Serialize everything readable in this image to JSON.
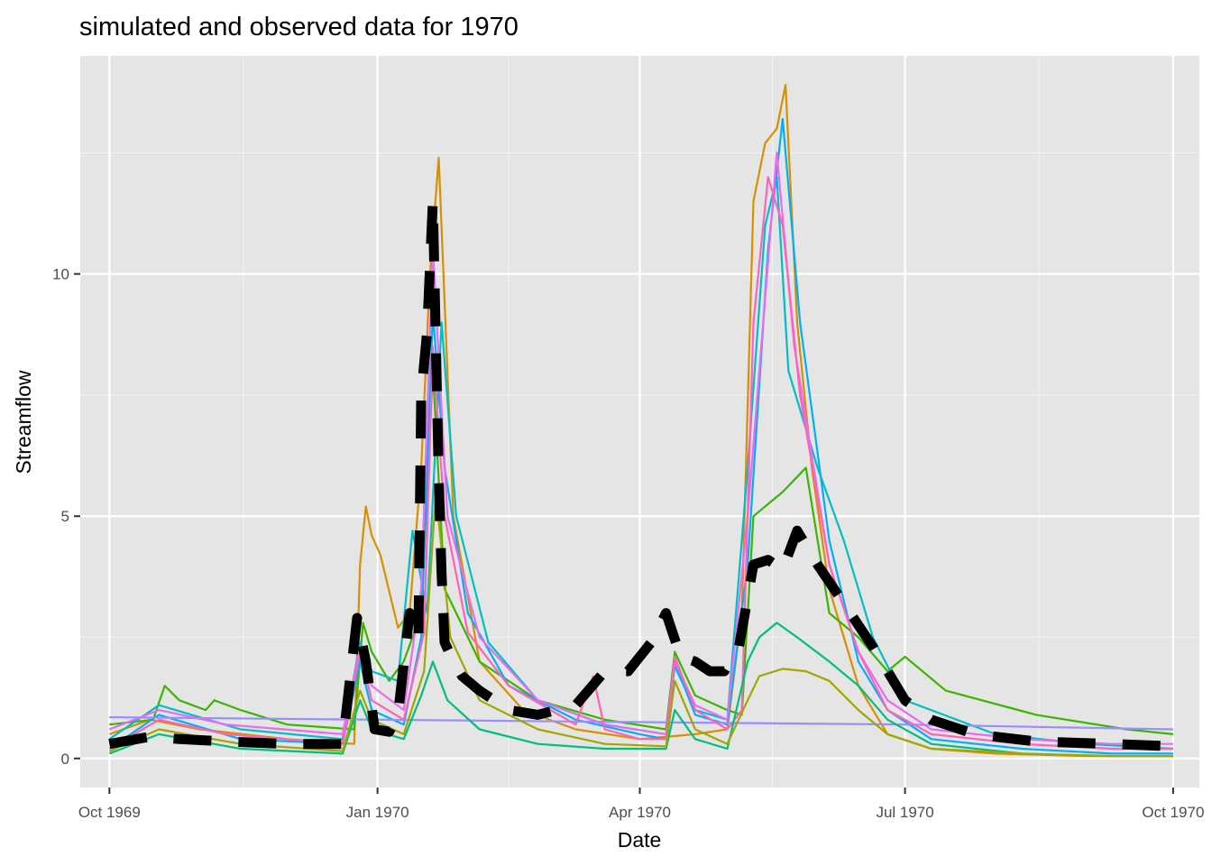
{
  "chart_data": {
    "type": "line",
    "title": "simulated and observed data for 1970",
    "xlabel": "Date",
    "ylabel": "Streamflow",
    "xlim": [
      "1969-09-21",
      "1970-10-10"
    ],
    "ylim": [
      -0.6,
      14.5
    ],
    "x_ticks": [
      "1969-10-01",
      "1970-01-01",
      "1970-04-01",
      "1970-07-01",
      "1970-10-01"
    ],
    "x_tick_labels": [
      "Oct 1969",
      "Jan 1970",
      "Apr 1970",
      "Jul 1970",
      "Oct 1970"
    ],
    "y_ticks": [
      0,
      5,
      10
    ],
    "y_tick_labels": [
      "0",
      "5",
      "10"
    ],
    "grid": true,
    "legend": "none",
    "background": "#e5e5e5",
    "colors": {
      "simulated_palette": [
        "#f8766d",
        "#d89000",
        "#a3a500",
        "#39b600",
        "#00bf7d",
        "#00bfc4",
        "#00b0f6",
        "#9590ff",
        "#e76bf3",
        "#ff62bc"
      ],
      "observed": "#000000"
    },
    "series": [
      {
        "style": "dashed-thick",
        "color": "#000000",
        "x": [
          "1969-10-01",
          "1969-10-15",
          "1969-10-25",
          "1969-11-10",
          "1969-12-01",
          "1969-12-20",
          "1969-12-25",
          "1969-12-28",
          "1969-12-31",
          "1970-01-05",
          "1970-01-08",
          "1970-01-12",
          "1970-01-15",
          "1970-01-16",
          "1970-01-18",
          "1970-01-20",
          "1970-01-22",
          "1970-01-23",
          "1970-01-24",
          "1970-01-27",
          "1970-01-30",
          "1970-02-05",
          "1970-02-15",
          "1970-02-25",
          "1970-03-10",
          "1970-03-20",
          "1970-03-28",
          "1970-04-05",
          "1970-04-10",
          "1970-04-15",
          "1970-04-20",
          "1970-04-25",
          "1970-04-30",
          "1970-05-05",
          "1970-05-10",
          "1970-05-15",
          "1970-05-20",
          "1970-05-25",
          "1970-06-01",
          "1970-06-10",
          "1970-06-20",
          "1970-06-27",
          "1970-07-01",
          "1970-07-10",
          "1970-07-25",
          "1970-08-15",
          "1970-09-10",
          "1970-10-01"
        ],
        "values": [
          0.3,
          0.45,
          0.4,
          0.35,
          0.3,
          0.3,
          2.9,
          2.0,
          0.6,
          0.55,
          0.9,
          3.0,
          2.4,
          7.5,
          8.8,
          11.5,
          5.8,
          3.8,
          2.4,
          2.0,
          1.7,
          1.4,
          1.0,
          0.9,
          1.1,
          1.8,
          1.8,
          2.4,
          3.0,
          2.1,
          2.0,
          1.8,
          1.8,
          2.3,
          4.0,
          4.1,
          3.9,
          4.7,
          4.0,
          3.2,
          2.3,
          1.6,
          1.2,
          0.8,
          0.5,
          0.35,
          0.3,
          0.25
        ]
      },
      {
        "style": "solid",
        "color": "#d89000",
        "x": [
          "1969-10-01",
          "1969-10-15",
          "1969-11-01",
          "1969-12-01",
          "1969-12-24",
          "1969-12-26",
          "1969-12-28",
          "1969-12-30",
          "1970-01-02",
          "1970-01-08",
          "1970-01-12",
          "1970-01-16",
          "1970-01-19",
          "1970-01-22",
          "1970-01-27",
          "1970-02-05",
          "1970-02-20",
          "1970-03-10",
          "1970-04-01",
          "1970-04-20",
          "1970-05-01",
          "1970-05-06",
          "1970-05-10",
          "1970-05-14",
          "1970-05-18",
          "1970-05-21",
          "1970-05-25",
          "1970-05-30",
          "1970-06-05",
          "1970-06-15",
          "1970-06-25",
          "1970-07-10",
          "1970-08-01",
          "1970-09-01",
          "1970-10-01"
        ],
        "values": [
          0.5,
          0.8,
          0.6,
          0.4,
          0.3,
          4.0,
          5.2,
          4.6,
          4.2,
          2.7,
          3.0,
          6.0,
          10.0,
          12.4,
          5.0,
          2.0,
          1.0,
          0.6,
          0.4,
          0.5,
          0.6,
          3.0,
          11.5,
          12.7,
          13.0,
          13.9,
          9.0,
          6.0,
          3.5,
          1.5,
          0.5,
          0.2,
          0.1,
          0.05,
          0.05
        ]
      },
      {
        "style": "solid",
        "color": "#39b600",
        "x": [
          "1969-10-01",
          "1969-10-16",
          "1969-10-20",
          "1969-10-25",
          "1969-11-03",
          "1969-11-06",
          "1969-11-15",
          "1969-12-01",
          "1969-12-24",
          "1969-12-27",
          "1969-12-30",
          "1970-01-05",
          "1970-01-10",
          "1970-01-16",
          "1970-01-20",
          "1970-01-24",
          "1970-02-05",
          "1970-02-25",
          "1970-03-20",
          "1970-04-10",
          "1970-04-13",
          "1970-04-20",
          "1970-05-01",
          "1970-05-06",
          "1970-05-10",
          "1970-05-20",
          "1970-05-28",
          "1970-06-05",
          "1970-06-15",
          "1970-06-25",
          "1970-07-01",
          "1970-07-15",
          "1970-08-15",
          "1970-09-15",
          "1970-10-01"
        ],
        "values": [
          0.7,
          0.8,
          1.5,
          1.2,
          1.0,
          1.2,
          1.0,
          0.7,
          0.6,
          2.8,
          2.2,
          1.6,
          2.0,
          3.0,
          8.0,
          3.5,
          2.0,
          1.2,
          0.8,
          0.6,
          2.2,
          1.3,
          1.0,
          0.9,
          5.0,
          5.5,
          6.0,
          3.0,
          2.5,
          1.8,
          2.1,
          1.4,
          0.9,
          0.6,
          0.5
        ]
      },
      {
        "style": "solid",
        "color": "#00bfc4",
        "x": [
          "1969-10-01",
          "1969-10-18",
          "1969-11-15",
          "1969-12-20",
          "1969-12-26",
          "1969-12-30",
          "1970-01-08",
          "1970-01-13",
          "1970-01-18",
          "1970-01-23",
          "1970-01-28",
          "1970-02-08",
          "1970-02-25",
          "1970-03-20",
          "1970-04-10",
          "1970-04-13",
          "1970-04-20",
          "1970-05-01",
          "1970-05-08",
          "1970-05-14",
          "1970-05-18",
          "1970-05-22",
          "1970-06-01",
          "1970-06-10",
          "1970-06-20",
          "1970-07-01",
          "1970-08-01",
          "1970-09-01",
          "1970-10-01"
        ],
        "values": [
          0.4,
          1.1,
          0.6,
          0.4,
          2.4,
          1.8,
          1.6,
          4.7,
          3.0,
          9.0,
          5.0,
          2.4,
          1.2,
          0.7,
          0.5,
          1.9,
          1.0,
          0.8,
          6.0,
          11.0,
          12.0,
          8.0,
          6.0,
          4.5,
          2.5,
          1.2,
          0.5,
          0.3,
          0.2
        ]
      },
      {
        "style": "solid",
        "color": "#00b0f6",
        "x": [
          "1969-10-01",
          "1969-10-18",
          "1969-11-15",
          "1969-12-20",
          "1969-12-26",
          "1969-12-30",
          "1970-01-10",
          "1970-01-16",
          "1970-01-20",
          "1970-01-24",
          "1970-02-01",
          "1970-02-15",
          "1970-03-10",
          "1970-04-01",
          "1970-04-10",
          "1970-04-13",
          "1970-04-20",
          "1970-05-01",
          "1970-05-08",
          "1970-05-15",
          "1970-05-20",
          "1970-05-26",
          "1970-06-05",
          "1970-06-15",
          "1970-06-25",
          "1970-07-10",
          "1970-08-10",
          "1970-09-10",
          "1970-10-01"
        ],
        "values": [
          0.2,
          0.9,
          0.4,
          0.3,
          2.0,
          1.0,
          0.7,
          2.5,
          9.2,
          6.0,
          3.0,
          1.5,
          0.8,
          0.5,
          0.4,
          2.0,
          0.9,
          0.7,
          4.0,
          10.5,
          13.2,
          9.0,
          4.5,
          2.0,
          1.0,
          0.4,
          0.2,
          0.1,
          0.1
        ]
      },
      {
        "style": "solid",
        "color": "#9590ff",
        "x": [
          "1969-10-01",
          "1970-01-01",
          "1970-04-01",
          "1970-07-01",
          "1970-10-01"
        ],
        "values": [
          0.85,
          0.8,
          0.75,
          0.7,
          0.6
        ]
      },
      {
        "style": "solid",
        "color": "#e76bf3",
        "x": [
          "1969-10-01",
          "1969-10-18",
          "1969-11-10",
          "1969-12-20",
          "1969-12-26",
          "1969-12-30",
          "1970-01-10",
          "1970-01-16",
          "1970-01-20",
          "1970-01-25",
          "1970-02-05",
          "1970-02-25",
          "1970-03-20",
          "1970-04-10",
          "1970-04-13",
          "1970-04-20",
          "1970-05-01",
          "1970-05-08",
          "1970-05-14",
          "1970-05-18",
          "1970-05-24",
          "1970-06-05",
          "1970-06-15",
          "1970-06-25",
          "1970-07-10",
          "1970-08-10",
          "1970-09-10",
          "1970-10-01"
        ],
        "values": [
          0.6,
          1.0,
          0.7,
          0.5,
          2.3,
          1.5,
          1.0,
          3.5,
          10.5,
          5.0,
          2.5,
          1.2,
          0.7,
          0.5,
          2.0,
          1.1,
          0.8,
          5.0,
          9.5,
          12.5,
          8.5,
          4.0,
          2.2,
          1.2,
          0.6,
          0.4,
          0.3,
          0.3
        ]
      },
      {
        "style": "solid",
        "color": "#ff62bc",
        "x": [
          "1969-10-01",
          "1969-10-18",
          "1969-11-10",
          "1969-12-20",
          "1969-12-26",
          "1969-12-30",
          "1970-01-10",
          "1970-01-17",
          "1970-01-20",
          "1970-01-24",
          "1970-02-01",
          "1970-02-15",
          "1970-03-10",
          "1970-03-16",
          "1970-03-20",
          "1970-04-01",
          "1970-04-10",
          "1970-04-13",
          "1970-04-20",
          "1970-05-01",
          "1970-05-06",
          "1970-05-10",
          "1970-05-15",
          "1970-05-20",
          "1970-05-26",
          "1970-06-05",
          "1970-06-15",
          "1970-06-25",
          "1970-07-10",
          "1970-08-10",
          "1970-09-10",
          "1970-10-01"
        ],
        "values": [
          0.2,
          0.8,
          0.5,
          0.3,
          2.2,
          1.2,
          0.8,
          2.6,
          8.5,
          5.0,
          2.6,
          1.5,
          0.7,
          1.7,
          0.6,
          0.4,
          0.4,
          2.1,
          1.0,
          0.6,
          1.0,
          9.0,
          12.0,
          11.0,
          7.5,
          4.0,
          2.2,
          1.0,
          0.5,
          0.3,
          0.2,
          0.2
        ]
      },
      {
        "style": "solid",
        "color": "#00bf7d",
        "x": [
          "1969-10-01",
          "1969-10-18",
          "1969-11-15",
          "1969-12-20",
          "1969-12-26",
          "1969-12-30",
          "1970-01-10",
          "1970-01-16",
          "1970-01-20",
          "1970-01-25",
          "1970-02-05",
          "1970-02-25",
          "1970-03-20",
          "1970-04-10",
          "1970-04-13",
          "1970-04-20",
          "1970-05-01",
          "1970-05-08",
          "1970-05-12",
          "1970-05-18",
          "1970-05-25",
          "1970-06-05",
          "1970-06-15",
          "1970-06-25",
          "1970-07-10",
          "1970-08-10",
          "1970-09-10",
          "1970-10-01"
        ],
        "values": [
          0.1,
          0.5,
          0.2,
          0.1,
          1.2,
          0.6,
          0.4,
          1.3,
          2.0,
          1.2,
          0.6,
          0.3,
          0.2,
          0.2,
          1.0,
          0.4,
          0.2,
          2.0,
          2.5,
          2.8,
          2.5,
          2.0,
          1.5,
          0.8,
          0.3,
          0.1,
          0.05,
          0.05
        ]
      },
      {
        "style": "solid",
        "color": "#a3a500",
        "x": [
          "1969-10-01",
          "1969-10-18",
          "1969-11-15",
          "1969-12-20",
          "1969-12-26",
          "1969-12-30",
          "1970-01-10",
          "1970-01-17",
          "1970-01-21",
          "1970-01-26",
          "1970-02-05",
          "1970-02-25",
          "1970-03-20",
          "1970-04-10",
          "1970-04-13",
          "1970-04-20",
          "1970-05-01",
          "1970-05-08",
          "1970-05-12",
          "1970-05-20",
          "1970-05-28",
          "1970-06-05",
          "1970-06-15",
          "1970-06-25",
          "1970-07-10",
          "1970-08-10",
          "1970-09-10",
          "1970-10-01"
        ],
        "values": [
          0.15,
          0.6,
          0.3,
          0.15,
          1.4,
          0.8,
          0.5,
          1.8,
          5.5,
          2.5,
          1.2,
          0.6,
          0.3,
          0.25,
          1.6,
          0.6,
          0.3,
          1.2,
          1.7,
          1.85,
          1.8,
          1.6,
          1.0,
          0.5,
          0.2,
          0.1,
          0.05,
          0.05
        ]
      }
    ]
  }
}
